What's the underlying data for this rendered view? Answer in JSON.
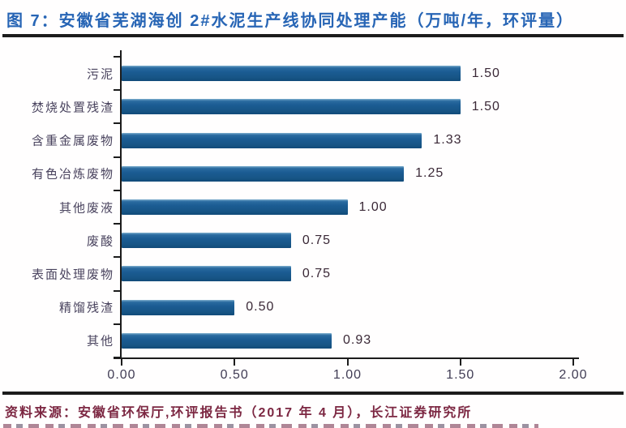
{
  "header": {
    "title": "图 7：安徽省芜湖海创 2#水泥生产线协同处理产能（万吨/年，环评量）"
  },
  "chart_data": {
    "type": "bar",
    "orientation": "horizontal",
    "title": "安徽省芜湖海创 2#水泥生产线协同处理产能",
    "unit": "万吨/年，环评量",
    "categories": [
      "污泥",
      "焚烧处置残渣",
      "含重金属废物",
      "有色冶炼废物",
      "其他废液",
      "废酸",
      "表面处理废物",
      "精馏残渣",
      "其他"
    ],
    "values": [
      1.5,
      1.5,
      1.33,
      1.25,
      1.0,
      0.75,
      0.75,
      0.5,
      0.93
    ],
    "value_labels": [
      "1.50",
      "1.50",
      "1.33",
      "1.25",
      "1.00",
      "0.75",
      "0.75",
      "0.50",
      "0.93"
    ],
    "x_ticks": [
      "0.00",
      "0.50",
      "1.00",
      "1.50",
      "2.00"
    ],
    "xlim": [
      0,
      2
    ],
    "grid": false,
    "legend": "none",
    "data_labels": "outside-end"
  },
  "footer": {
    "source_label": "资料来源：",
    "source_text": "安徽省环保厅,环评报告书（2017 年 4 月），长江证券研究所"
  },
  "colors": {
    "title": "#2765b5",
    "bar": "#1b5c93",
    "axis": "#1c1c1c",
    "source": "#7c2742",
    "category_label": "#49435e",
    "value_label": "#3a2836"
  }
}
